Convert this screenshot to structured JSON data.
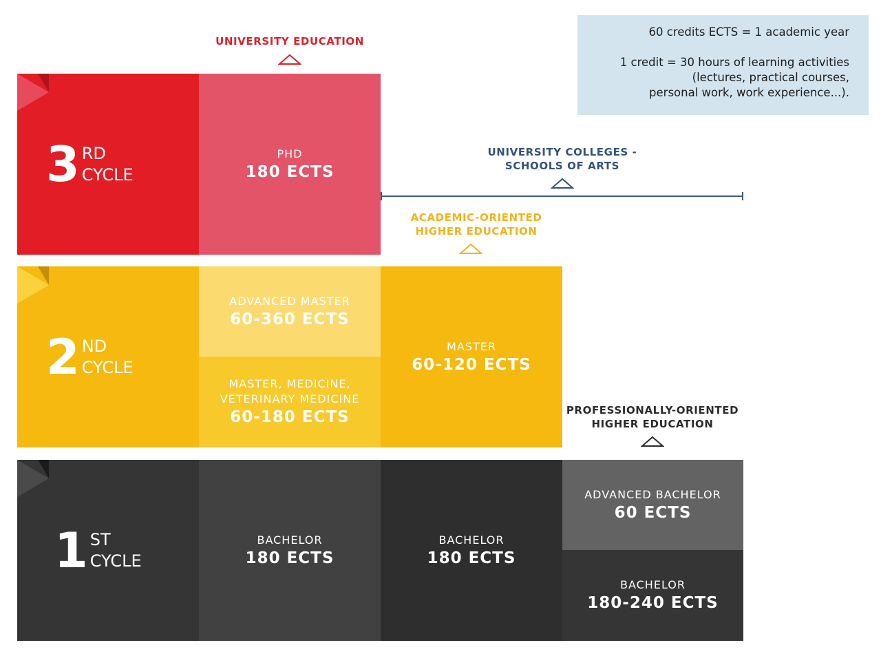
{
  "info": {
    "line1": "60 credits ECTS = 1 academic year",
    "line2": "1 credit = 30 hours of learning activities",
    "line3": "(lectures, practical courses,",
    "line4": "personal work, work experience...)."
  },
  "headings": {
    "university_education": "UNIVERSITY EDUCATION",
    "university_colleges_1": "UNIVERSITY COLLEGES -",
    "university_colleges_2": "SCHOOLS OF ARTS",
    "academic_oriented_1": "ACADEMIC-ORIENTED",
    "academic_oriented_2": "HIGHER EDUCATION",
    "professionally_oriented_1": "PROFESSIONALLY-ORIENTED",
    "professionally_oriented_2": "HIGHER EDUCATION"
  },
  "cycles": {
    "third": {
      "number": "3",
      "suffix": "RD",
      "word": "CYCLE"
    },
    "second": {
      "number": "2",
      "suffix": "ND",
      "word": "CYCLE"
    },
    "first": {
      "number": "1",
      "suffix": "ST",
      "word": "CYCLE"
    }
  },
  "programs": {
    "phd": {
      "name": "PHD",
      "ects": "180 ECTS"
    },
    "advanced_master": {
      "name": "ADVANCED MASTER",
      "ects": "60-360 ECTS"
    },
    "master_medicine_1": "MASTER, MEDICINE,",
    "master_medicine_2": "VETERINARY MEDICINE",
    "master_medicine_ects": "60-180 ECTS",
    "master": {
      "name": "MASTER",
      "ects": "60-120 ECTS"
    },
    "bachelor_univ": {
      "name": "BACHELOR",
      "ects": "180 ECTS"
    },
    "bachelor_academic": {
      "name": "BACHELOR",
      "ects": "180 ECTS"
    },
    "advanced_bachelor": {
      "name": "ADVANCED BACHELOR",
      "ects": "60 ECTS"
    },
    "bachelor_prof": {
      "name": "BACHELOR",
      "ects": "180-240 ECTS"
    }
  },
  "colors": {
    "red_dark": "#e21d25",
    "red_light": "#e35468",
    "yellow": "#f5b90f",
    "yellow_light": "#fbdb70",
    "yellow_mid": "#f8c92b",
    "gray_dark": "#353535",
    "gray_mid": "#414141",
    "gray_darkest": "#2e2e2e",
    "gray_light": "#636363",
    "heading_red": "#d9222c",
    "heading_blue": "#33527d",
    "heading_yellow": "#f1b31a",
    "heading_dark": "#2b2b2b"
  }
}
